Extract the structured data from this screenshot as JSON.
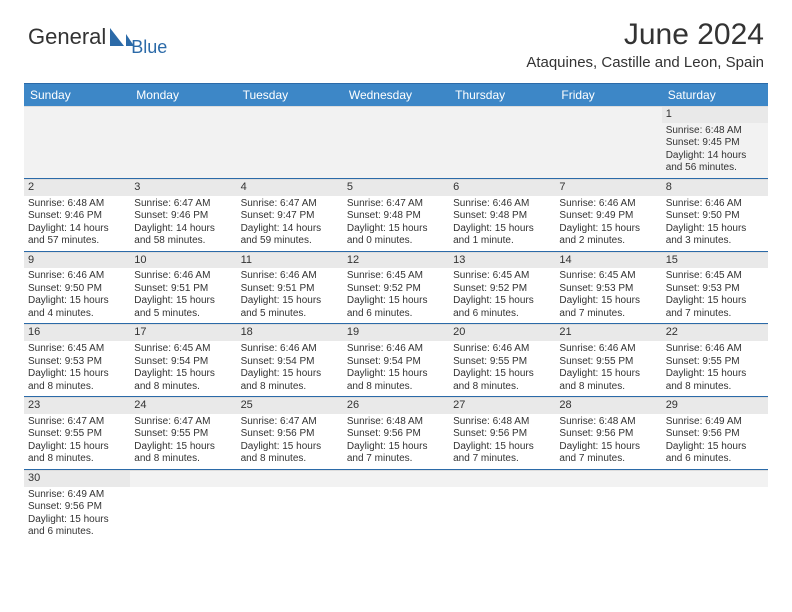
{
  "brand": {
    "name_part1": "General",
    "name_part2": "Blue"
  },
  "logo_colors": {
    "text": "#333333",
    "accent": "#2b6aa8",
    "sail": "#2b6aa8"
  },
  "title": "June 2024",
  "location": "Ataquines, Castille and Leon, Spain",
  "header_bg": "#3d87c7",
  "header_text_color": "#ffffff",
  "border_color": "#2b6aa8",
  "daynum_bg": "#e9e9e9",
  "empty_bg": "#f2f2f2",
  "font_family": "Arial",
  "weekdays": [
    "Sunday",
    "Monday",
    "Tuesday",
    "Wednesday",
    "Thursday",
    "Friday",
    "Saturday"
  ],
  "weeks": [
    [
      {
        "day": "",
        "lines": [
          "",
          "",
          "",
          ""
        ]
      },
      {
        "day": "",
        "lines": [
          "",
          "",
          "",
          ""
        ]
      },
      {
        "day": "",
        "lines": [
          "",
          "",
          "",
          ""
        ]
      },
      {
        "day": "",
        "lines": [
          "",
          "",
          "",
          ""
        ]
      },
      {
        "day": "",
        "lines": [
          "",
          "",
          "",
          ""
        ]
      },
      {
        "day": "",
        "lines": [
          "",
          "",
          "",
          ""
        ]
      },
      {
        "day": "1",
        "lines": [
          "Sunrise: 6:48 AM",
          "Sunset: 9:45 PM",
          "Daylight: 14 hours",
          "and 56 minutes."
        ]
      }
    ],
    [
      {
        "day": "2",
        "lines": [
          "Sunrise: 6:48 AM",
          "Sunset: 9:46 PM",
          "Daylight: 14 hours",
          "and 57 minutes."
        ]
      },
      {
        "day": "3",
        "lines": [
          "Sunrise: 6:47 AM",
          "Sunset: 9:46 PM",
          "Daylight: 14 hours",
          "and 58 minutes."
        ]
      },
      {
        "day": "4",
        "lines": [
          "Sunrise: 6:47 AM",
          "Sunset: 9:47 PM",
          "Daylight: 14 hours",
          "and 59 minutes."
        ]
      },
      {
        "day": "5",
        "lines": [
          "Sunrise: 6:47 AM",
          "Sunset: 9:48 PM",
          "Daylight: 15 hours",
          "and 0 minutes."
        ]
      },
      {
        "day": "6",
        "lines": [
          "Sunrise: 6:46 AM",
          "Sunset: 9:48 PM",
          "Daylight: 15 hours",
          "and 1 minute."
        ]
      },
      {
        "day": "7",
        "lines": [
          "Sunrise: 6:46 AM",
          "Sunset: 9:49 PM",
          "Daylight: 15 hours",
          "and 2 minutes."
        ]
      },
      {
        "day": "8",
        "lines": [
          "Sunrise: 6:46 AM",
          "Sunset: 9:50 PM",
          "Daylight: 15 hours",
          "and 3 minutes."
        ]
      }
    ],
    [
      {
        "day": "9",
        "lines": [
          "Sunrise: 6:46 AM",
          "Sunset: 9:50 PM",
          "Daylight: 15 hours",
          "and 4 minutes."
        ]
      },
      {
        "day": "10",
        "lines": [
          "Sunrise: 6:46 AM",
          "Sunset: 9:51 PM",
          "Daylight: 15 hours",
          "and 5 minutes."
        ]
      },
      {
        "day": "11",
        "lines": [
          "Sunrise: 6:46 AM",
          "Sunset: 9:51 PM",
          "Daylight: 15 hours",
          "and 5 minutes."
        ]
      },
      {
        "day": "12",
        "lines": [
          "Sunrise: 6:45 AM",
          "Sunset: 9:52 PM",
          "Daylight: 15 hours",
          "and 6 minutes."
        ]
      },
      {
        "day": "13",
        "lines": [
          "Sunrise: 6:45 AM",
          "Sunset: 9:52 PM",
          "Daylight: 15 hours",
          "and 6 minutes."
        ]
      },
      {
        "day": "14",
        "lines": [
          "Sunrise: 6:45 AM",
          "Sunset: 9:53 PM",
          "Daylight: 15 hours",
          "and 7 minutes."
        ]
      },
      {
        "day": "15",
        "lines": [
          "Sunrise: 6:45 AM",
          "Sunset: 9:53 PM",
          "Daylight: 15 hours",
          "and 7 minutes."
        ]
      }
    ],
    [
      {
        "day": "16",
        "lines": [
          "Sunrise: 6:45 AM",
          "Sunset: 9:53 PM",
          "Daylight: 15 hours",
          "and 8 minutes."
        ]
      },
      {
        "day": "17",
        "lines": [
          "Sunrise: 6:45 AM",
          "Sunset: 9:54 PM",
          "Daylight: 15 hours",
          "and 8 minutes."
        ]
      },
      {
        "day": "18",
        "lines": [
          "Sunrise: 6:46 AM",
          "Sunset: 9:54 PM",
          "Daylight: 15 hours",
          "and 8 minutes."
        ]
      },
      {
        "day": "19",
        "lines": [
          "Sunrise: 6:46 AM",
          "Sunset: 9:54 PM",
          "Daylight: 15 hours",
          "and 8 minutes."
        ]
      },
      {
        "day": "20",
        "lines": [
          "Sunrise: 6:46 AM",
          "Sunset: 9:55 PM",
          "Daylight: 15 hours",
          "and 8 minutes."
        ]
      },
      {
        "day": "21",
        "lines": [
          "Sunrise: 6:46 AM",
          "Sunset: 9:55 PM",
          "Daylight: 15 hours",
          "and 8 minutes."
        ]
      },
      {
        "day": "22",
        "lines": [
          "Sunrise: 6:46 AM",
          "Sunset: 9:55 PM",
          "Daylight: 15 hours",
          "and 8 minutes."
        ]
      }
    ],
    [
      {
        "day": "23",
        "lines": [
          "Sunrise: 6:47 AM",
          "Sunset: 9:55 PM",
          "Daylight: 15 hours",
          "and 8 minutes."
        ]
      },
      {
        "day": "24",
        "lines": [
          "Sunrise: 6:47 AM",
          "Sunset: 9:55 PM",
          "Daylight: 15 hours",
          "and 8 minutes."
        ]
      },
      {
        "day": "25",
        "lines": [
          "Sunrise: 6:47 AM",
          "Sunset: 9:56 PM",
          "Daylight: 15 hours",
          "and 8 minutes."
        ]
      },
      {
        "day": "26",
        "lines": [
          "Sunrise: 6:48 AM",
          "Sunset: 9:56 PM",
          "Daylight: 15 hours",
          "and 7 minutes."
        ]
      },
      {
        "day": "27",
        "lines": [
          "Sunrise: 6:48 AM",
          "Sunset: 9:56 PM",
          "Daylight: 15 hours",
          "and 7 minutes."
        ]
      },
      {
        "day": "28",
        "lines": [
          "Sunrise: 6:48 AM",
          "Sunset: 9:56 PM",
          "Daylight: 15 hours",
          "and 7 minutes."
        ]
      },
      {
        "day": "29",
        "lines": [
          "Sunrise: 6:49 AM",
          "Sunset: 9:56 PM",
          "Daylight: 15 hours",
          "and 6 minutes."
        ]
      }
    ],
    [
      {
        "day": "30",
        "lines": [
          "Sunrise: 6:49 AM",
          "Sunset: 9:56 PM",
          "Daylight: 15 hours",
          "and 6 minutes."
        ]
      },
      {
        "day": "",
        "lines": [
          "",
          "",
          "",
          ""
        ]
      },
      {
        "day": "",
        "lines": [
          "",
          "",
          "",
          ""
        ]
      },
      {
        "day": "",
        "lines": [
          "",
          "",
          "",
          ""
        ]
      },
      {
        "day": "",
        "lines": [
          "",
          "",
          "",
          ""
        ]
      },
      {
        "day": "",
        "lines": [
          "",
          "",
          "",
          ""
        ]
      },
      {
        "day": "",
        "lines": [
          "",
          "",
          "",
          ""
        ]
      }
    ]
  ]
}
